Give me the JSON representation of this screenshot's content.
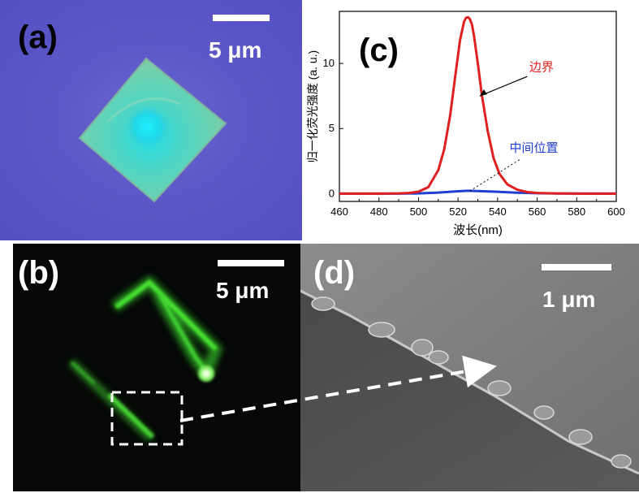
{
  "panels": {
    "a": {
      "label": "(a)",
      "scale_bar": "5 μm"
    },
    "b": {
      "label": "(b)",
      "scale_bar": "5 μm"
    },
    "c": {
      "label": "(c)"
    },
    "d": {
      "label": "(d)",
      "scale_bar": "1 μm"
    }
  },
  "chart_data": {
    "type": "line",
    "xlabel": "波长(nm)",
    "ylabel": "归一化荧光强度 (a. u.)",
    "xlim": [
      460,
      600
    ],
    "ylim": [
      -0.6,
      14
    ],
    "xticks": [
      460,
      480,
      500,
      520,
      540,
      560,
      580,
      600
    ],
    "yticks": [
      0,
      5,
      10
    ],
    "series": [
      {
        "name": "边界",
        "color": "#e02020",
        "x": [
          460,
          480,
          490,
          495,
          500,
          505,
          510,
          513,
          516,
          519,
          521,
          523,
          524,
          525,
          526,
          527,
          528,
          530,
          532,
          535,
          538,
          541,
          545,
          550,
          555,
          560,
          570,
          580,
          590,
          600
        ],
        "y": [
          0,
          0,
          0.02,
          0.05,
          0.15,
          0.5,
          1.8,
          3.4,
          6.0,
          9.5,
          11.8,
          13.2,
          13.5,
          13.55,
          13.4,
          13.0,
          12.2,
          10.0,
          7.6,
          4.8,
          2.7,
          1.5,
          0.7,
          0.3,
          0.12,
          0.05,
          0.02,
          0,
          0,
          0
        ]
      },
      {
        "name": "中间位置",
        "color": "#1f3fd0",
        "x": [
          460,
          490,
          500,
          510,
          520,
          525,
          530,
          540,
          550,
          560,
          570,
          600
        ],
        "y": [
          0,
          0,
          0.02,
          0.08,
          0.18,
          0.22,
          0.2,
          0.14,
          0.07,
          0.03,
          0.01,
          0
        ]
      }
    ],
    "annotations": [
      {
        "text": "边界",
        "color": "#e02020",
        "points_to": [
          531,
          7.5
        ]
      },
      {
        "text": "中间位置",
        "color": "#1f3fd0",
        "points_to": [
          526,
          0.2
        ]
      }
    ],
    "grid": false,
    "legend": "none"
  }
}
